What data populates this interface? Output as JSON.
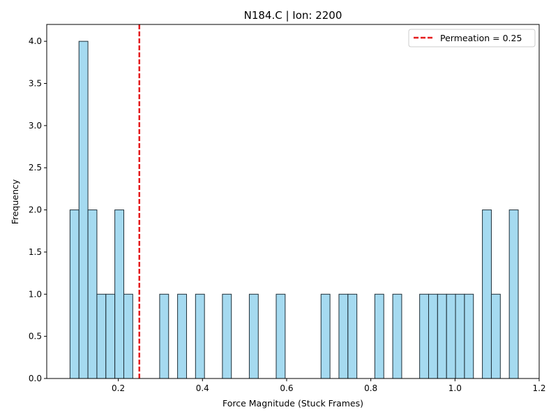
{
  "chart_data": {
    "type": "bar",
    "title": "N184.C | Ion: 2200",
    "xlabel": "Force Magnitude (Stuck Frames)",
    "ylabel": "Frequency",
    "xlim": [
      0.03,
      1.2
    ],
    "ylim": [
      0,
      4.2
    ],
    "xticks": [
      0.2,
      0.4,
      0.6,
      0.8,
      1.0,
      1.2
    ],
    "xtick_labels": [
      "0.2",
      "0.4",
      "0.6",
      "0.8",
      "1.0",
      "1.2"
    ],
    "yticks": [
      0.0,
      0.5,
      1.0,
      1.5,
      2.0,
      2.5,
      3.0,
      3.5,
      4.0
    ],
    "ytick_labels": [
      "0.0",
      "0.5",
      "1.0",
      "1.5",
      "2.0",
      "2.5",
      "3.0",
      "3.5",
      "4.0"
    ],
    "bin_width": 0.0213,
    "bins": [
      {
        "left": 0.0853,
        "count": 2
      },
      {
        "left": 0.1066,
        "count": 4
      },
      {
        "left": 0.1279,
        "count": 2
      },
      {
        "left": 0.1492,
        "count": 1
      },
      {
        "left": 0.1705,
        "count": 1
      },
      {
        "left": 0.1918,
        "count": 2
      },
      {
        "left": 0.2131,
        "count": 1
      },
      {
        "left": 0.2983,
        "count": 1
      },
      {
        "left": 0.3409,
        "count": 1
      },
      {
        "left": 0.3835,
        "count": 1
      },
      {
        "left": 0.4474,
        "count": 1
      },
      {
        "left": 0.5113,
        "count": 1
      },
      {
        "left": 0.5752,
        "count": 1
      },
      {
        "left": 0.6817,
        "count": 1
      },
      {
        "left": 0.7243,
        "count": 1
      },
      {
        "left": 0.7456,
        "count": 1
      },
      {
        "left": 0.8095,
        "count": 1
      },
      {
        "left": 0.8521,
        "count": 1
      },
      {
        "left": 0.916,
        "count": 1
      },
      {
        "left": 0.9373,
        "count": 1
      },
      {
        "left": 0.9586,
        "count": 1
      },
      {
        "left": 0.9799,
        "count": 1
      },
      {
        "left": 1.0012,
        "count": 1
      },
      {
        "left": 1.0225,
        "count": 1
      },
      {
        "left": 1.0651,
        "count": 2
      },
      {
        "left": 1.0864,
        "count": 1
      },
      {
        "left": 1.129,
        "count": 2
      }
    ],
    "reference_line": {
      "x": 0.25,
      "label": "Permeation = 0.25",
      "style": "dashed"
    },
    "legend_position": "upper-right",
    "grid": false,
    "colors": {
      "bar_fill": "#87ceeb",
      "bar_edge": "#1f2f38",
      "line": "#e41a1c"
    }
  }
}
